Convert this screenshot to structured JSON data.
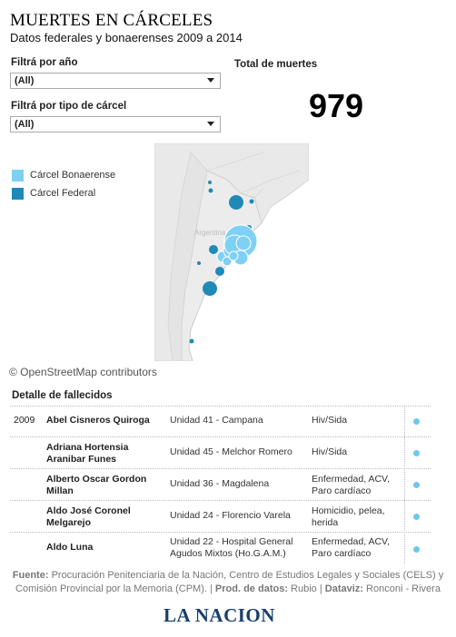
{
  "header": {
    "title": "MUERTES EN CÁRCELES",
    "subtitle": "Datos federales y bonaerenses 2009 a 2014"
  },
  "filters": {
    "year": {
      "label": "Filtrá por año",
      "value": "(All)"
    },
    "prison_type": {
      "label": "Filtrá por tipo de cárcel",
      "value": "(All)"
    }
  },
  "total": {
    "label": "Total de muertes",
    "value": "979"
  },
  "legend": [
    {
      "label": "Cárcel Bonaerense",
      "color": "#7fd0f5"
    },
    {
      "label": "Cárcel Federal",
      "color": "#1f8ab8"
    }
  ],
  "map": {
    "country_label": "Argentina",
    "attribution": "© OpenStreetMap contributors"
  },
  "detail": {
    "heading": "Detalle de fallecidos",
    "rows": [
      {
        "year": "2009",
        "name": "Abel Cisneros Quiroga",
        "unit": "Unidad 41 - Campana",
        "cause": "Hiv/Sida"
      },
      {
        "year": "",
        "name": "Adriana Hortensia Aranibar Funes",
        "unit": "Unidad 45 - Melchor Romero",
        "cause": "Hiv/Sida"
      },
      {
        "year": "",
        "name": "Alberto Oscar Gordon Millan",
        "unit": "Unidad 36 - Magdalena",
        "cause": "Enfermedad, ACV, Paro cardíaco"
      },
      {
        "year": "",
        "name": "Aldo José Coronel Melgarejo",
        "unit": "Unidad 24 - Florencio Varela",
        "cause": "Homicidio, pelea, herida"
      },
      {
        "year": "",
        "name": "Aldo Luna",
        "unit": "Unidad 22 - Hospital General Agudos Mixtos (Ho.G.A.M.)",
        "cause": "Enfermedad, ACV, Paro cardíaco"
      }
    ]
  },
  "source": {
    "fuente_label": "Fuente:",
    "fuente_text": "Procuración Penitenciaria de la Nación, Centro de Estudios Legales y Sociales (CELS) y Comisión Provincial por la Memoria (CPM).",
    "prod_label": "Prod. de datos:",
    "prod_text": "Rubio",
    "dataviz_label": "Dataviz:",
    "dataviz_text": "Ronconi - Rivera"
  },
  "logo": "LA NACION"
}
